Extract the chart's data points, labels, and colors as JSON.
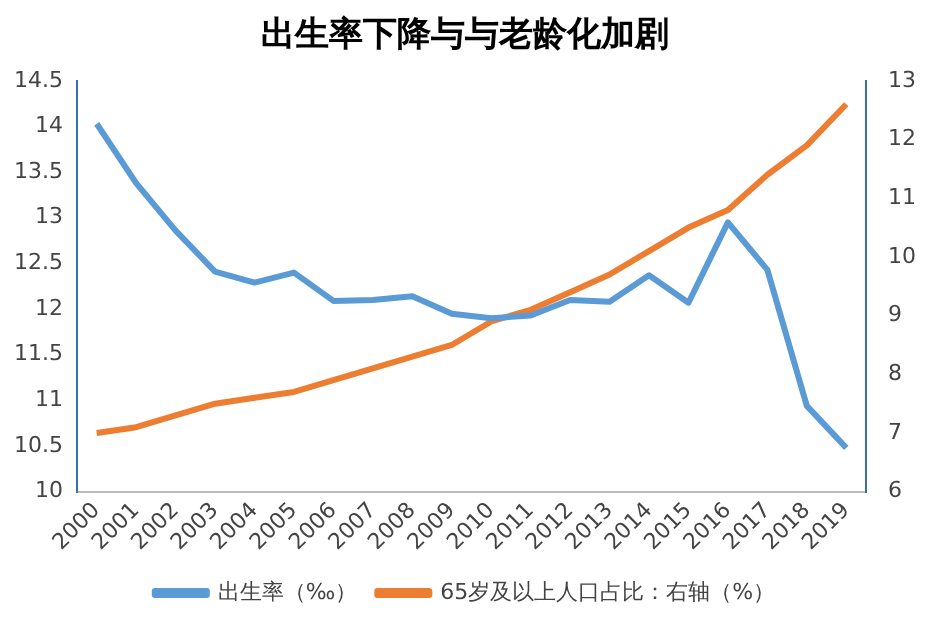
{
  "chart_data": {
    "type": "line",
    "title": "出生率下降与与老龄化加剧",
    "categories": [
      "2000",
      "2001",
      "2002",
      "2003",
      "2004",
      "2005",
      "2006",
      "2007",
      "2008",
      "2009",
      "2010",
      "2011",
      "2012",
      "2013",
      "2014",
      "2015",
      "2016",
      "2017",
      "2018",
      "2019"
    ],
    "series": [
      {
        "name": "出生率（‰）",
        "color": "#5b9bd5",
        "values": [
          14.03,
          13.38,
          12.86,
          12.41,
          12.29,
          12.4,
          12.09,
          12.1,
          12.14,
          11.95,
          11.9,
          11.93,
          12.1,
          12.08,
          12.37,
          12.07,
          12.95,
          12.43,
          10.94,
          10.48
        ]
      },
      {
        "name": "65岁及以上人口占比：右轴（%）",
        "color": "#ed7d31",
        "axis": "y2",
        "values": [
          7.0,
          7.1,
          7.3,
          7.5,
          7.6,
          7.7,
          7.9,
          8.1,
          8.3,
          8.5,
          8.9,
          9.1,
          9.4,
          9.7,
          10.1,
          10.5,
          10.8,
          11.4,
          11.9,
          12.6
        ]
      }
    ],
    "ylim": [
      10,
      14.5
    ],
    "yticks": [
      10,
      10.5,
      11,
      11.5,
      12,
      12.5,
      13,
      13.5,
      14,
      14.5
    ],
    "y2lim": [
      6,
      13
    ],
    "y2ticks": [
      6,
      7,
      8,
      9,
      10,
      11,
      12,
      13
    ],
    "grid": false,
    "legend": "bottom",
    "marker": "none",
    "line_style": "solid"
  }
}
